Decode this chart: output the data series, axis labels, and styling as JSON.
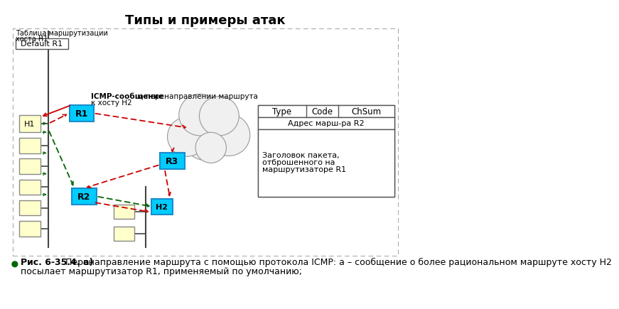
{
  "title": "Типы и примеры атак",
  "title_fontsize": 13,
  "bg_color": "#ffffff",
  "routing_table_label1": "Таблица маршрутизации",
  "routing_table_label2": "хоста Н1",
  "default_r1_label": "Default R1",
  "icmp_bold": "ICMP-сообщение",
  "icmp_rest": " о перенаправлении маршрута",
  "icmp_line2": "к хосту Н2",
  "host_color": "#ffffcc",
  "router_color": "#00ccff",
  "router_border": "#1a8ccc",
  "red_color": "#cc0000",
  "green_color": "#006600",
  "table_header": [
    "Type",
    "Code",
    "ChSum"
  ],
  "table_row1": "Адрес марш-ра R2",
  "table_row2_line1": "Заголовок пакета,",
  "table_row2_line2": "отброшенного на",
  "table_row2_line3": "маршрутизаторе R1",
  "caption_bold": "Рис. 6-35.4. а)",
  "caption_line1": " Перенаправление маршрута с помощью протокола ICMP: а – сообщение о более рациональном маршруте хосту Н2",
  "caption_line2": "посылает маршрутизатор R1, применяемый по умолчанию;"
}
